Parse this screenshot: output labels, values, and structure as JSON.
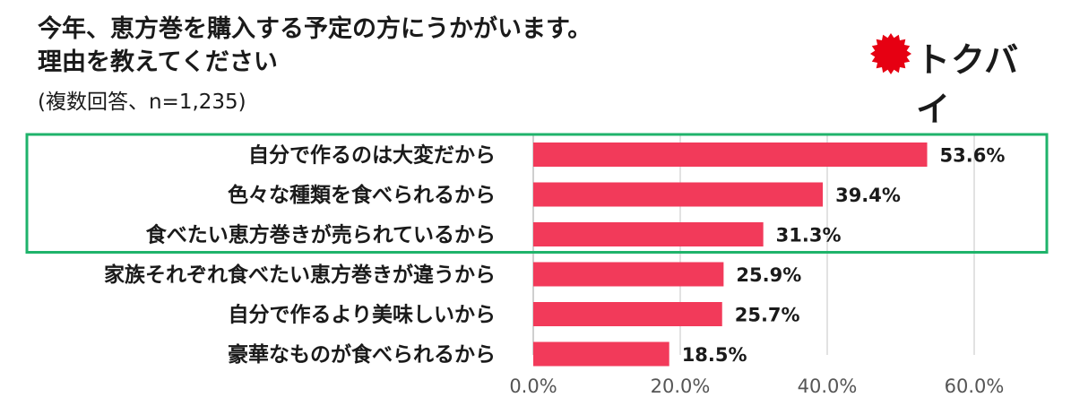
{
  "title_line1": "今年、恵方巻を購入する予定の方にうかがいます。",
  "title_line2": "理由を教えてください",
  "subtitle": "(複数回答、n=1,235)",
  "brand": {
    "name": "トクバイ",
    "color": "#e60012"
  },
  "highlight_color": "#1fb36b",
  "bar_color": "#f23a5a",
  "chart_data": {
    "type": "bar",
    "orientation": "horizontal",
    "categories": [
      "自分で作るのは大変だから",
      "色々な種類を食べられるから",
      "食べたい恵方巻きが売られているから",
      "家族それぞれ食べたい恵方巻きが違うから",
      "自分で作るより美味しいから",
      "豪華なものが食べられるから"
    ],
    "values": [
      53.6,
      39.4,
      31.3,
      25.9,
      25.7,
      18.5
    ],
    "value_labels": [
      "53.6%",
      "39.4%",
      "31.3%",
      "25.9%",
      "25.7%",
      "18.5%"
    ],
    "xlim": [
      0,
      60
    ],
    "x_ticks": [
      0,
      20,
      40,
      60
    ],
    "x_tick_labels": [
      "0.0%",
      "20.0%",
      "40.0%",
      "60.0%"
    ],
    "grid": true,
    "highlighted_categories": 3
  }
}
